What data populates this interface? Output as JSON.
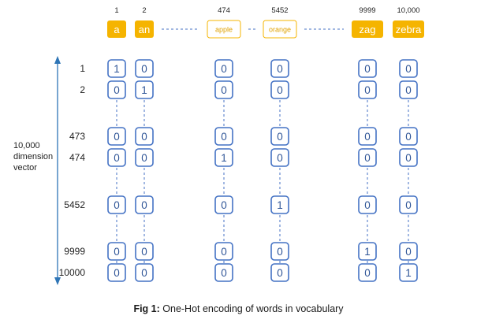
{
  "caption": {
    "label": "Fig 1:",
    "text": "One-Hot encoding of words in vocabulary"
  },
  "axis": {
    "label_lines": [
      "10,000",
      "dimension",
      "vector"
    ]
  },
  "row_labels": [
    "1",
    "2",
    "473",
    "474",
    "5452",
    "9999",
    "10000"
  ],
  "words": [
    {
      "index": "1",
      "word": "a",
      "style": "filled",
      "bits": [
        "1",
        "0",
        "0",
        "0",
        "0",
        "0",
        "0"
      ]
    },
    {
      "index": "2",
      "word": "an",
      "style": "filled",
      "bits": [
        "0",
        "1",
        "0",
        "0",
        "0",
        "0",
        "0"
      ]
    },
    {
      "index": "474",
      "word": "apple",
      "style": "outline",
      "bits": [
        "0",
        "0",
        "0",
        "1",
        "0",
        "0",
        "0"
      ]
    },
    {
      "index": "5452",
      "word": "orange",
      "style": "outline",
      "bits": [
        "0",
        "0",
        "0",
        "0",
        "1",
        "0",
        "0"
      ]
    },
    {
      "index": "9999",
      "word": "zag",
      "style": "filled",
      "bits": [
        "0",
        "0",
        "0",
        "0",
        "0",
        "1",
        "0"
      ]
    },
    {
      "index": "10,000",
      "word": "zebra",
      "style": "filled",
      "bits": [
        "0",
        "0",
        "0",
        "0",
        "0",
        "0",
        "1"
      ]
    }
  ],
  "colors": {
    "word_fill": "#F5B400",
    "word_outline": "#F5B400",
    "word_outline_text": "#E0A100",
    "cell_border": "#4472C4",
    "cell_text": "#2F5597",
    "axis": "#2E75B6",
    "connector": "#4472C4"
  }
}
